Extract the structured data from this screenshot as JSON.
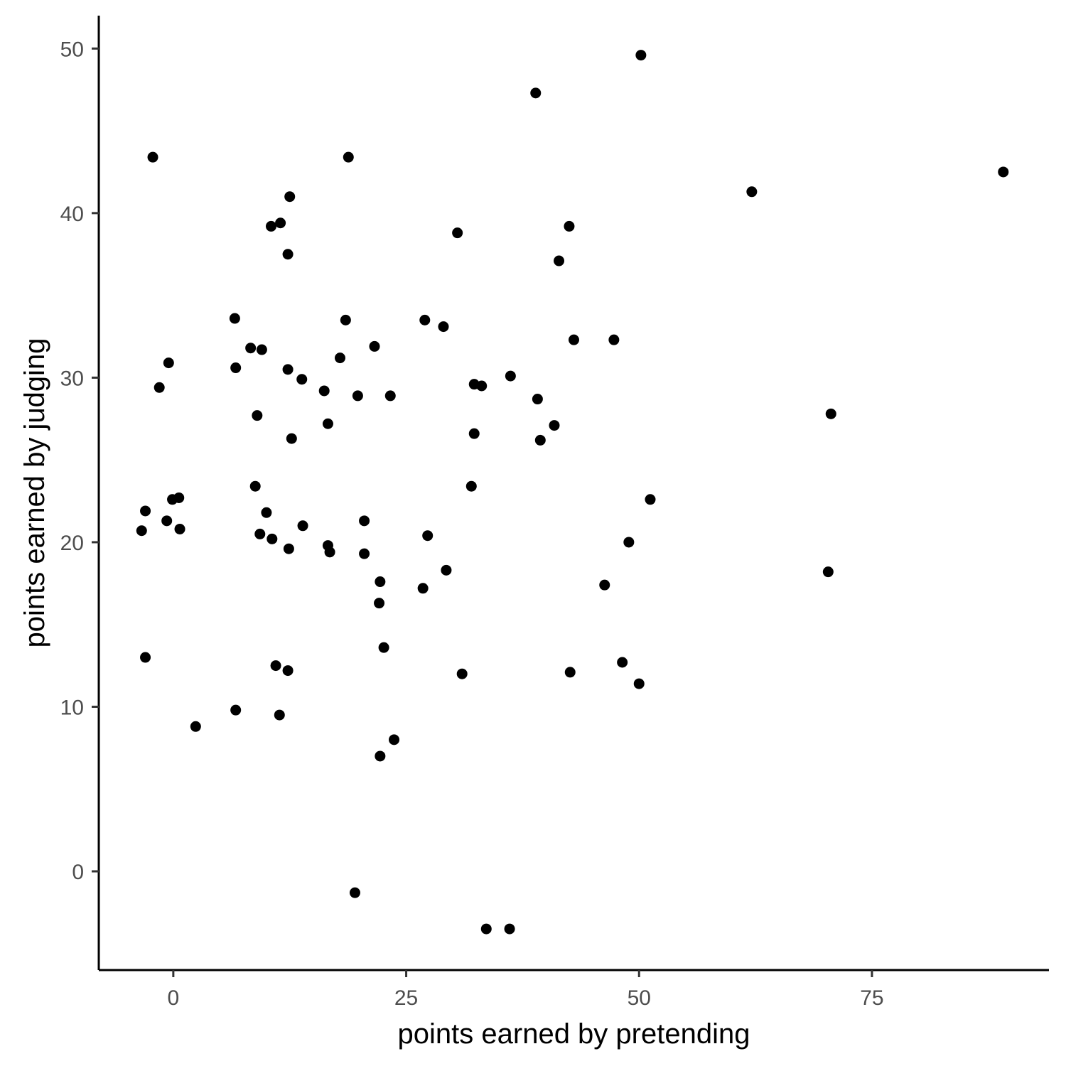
{
  "chart_data": {
    "type": "scatter",
    "xlabel": "points earned by pretending",
    "ylabel": "points earned by judging",
    "xlim": [
      -8,
      94
    ],
    "ylim": [
      -6,
      52
    ],
    "xticks": [
      0,
      25,
      50,
      75
    ],
    "yticks": [
      0,
      10,
      20,
      30,
      40,
      50
    ],
    "grid": false,
    "point_color": "#000000",
    "points": [
      [
        50.2,
        49.6
      ],
      [
        38.9,
        47.3
      ],
      [
        -2.2,
        43.4
      ],
      [
        18.8,
        43.4
      ],
      [
        89.1,
        42.5
      ],
      [
        62.1,
        41.3
      ],
      [
        12.5,
        41.0
      ],
      [
        11.5,
        39.4
      ],
      [
        10.5,
        39.2
      ],
      [
        42.5,
        39.2
      ],
      [
        30.5,
        38.8
      ],
      [
        12.3,
        37.5
      ],
      [
        41.4,
        37.1
      ],
      [
        6.6,
        33.6
      ],
      [
        18.5,
        33.5
      ],
      [
        27.0,
        33.5
      ],
      [
        29.0,
        33.1
      ],
      [
        43.0,
        32.3
      ],
      [
        47.3,
        32.3
      ],
      [
        8.3,
        31.8
      ],
      [
        21.6,
        31.9
      ],
      [
        9.5,
        31.7
      ],
      [
        17.9,
        31.2
      ],
      [
        -0.5,
        30.9
      ],
      [
        6.7,
        30.6
      ],
      [
        12.3,
        30.5
      ],
      [
        13.8,
        29.9
      ],
      [
        36.2,
        30.1
      ],
      [
        32.3,
        29.6
      ],
      [
        33.1,
        29.5
      ],
      [
        -1.5,
        29.4
      ],
      [
        16.2,
        29.2
      ],
      [
        19.8,
        28.9
      ],
      [
        23.3,
        28.9
      ],
      [
        39.1,
        28.7
      ],
      [
        9.0,
        27.7
      ],
      [
        16.6,
        27.2
      ],
      [
        70.6,
        27.8
      ],
      [
        40.9,
        27.1
      ],
      [
        32.3,
        26.6
      ],
      [
        12.7,
        26.3
      ],
      [
        39.4,
        26.2
      ],
      [
        8.8,
        23.4
      ],
      [
        32.0,
        23.4
      ],
      [
        -0.1,
        22.6
      ],
      [
        0.6,
        22.7
      ],
      [
        51.2,
        22.6
      ],
      [
        -3.0,
        21.9
      ],
      [
        10.0,
        21.8
      ],
      [
        -0.7,
        21.3
      ],
      [
        20.5,
        21.3
      ],
      [
        13.9,
        21.0
      ],
      [
        -3.4,
        20.7
      ],
      [
        0.7,
        20.8
      ],
      [
        9.3,
        20.5
      ],
      [
        27.3,
        20.4
      ],
      [
        10.6,
        20.2
      ],
      [
        48.9,
        20.0
      ],
      [
        16.6,
        19.8
      ],
      [
        16.8,
        19.4
      ],
      [
        12.4,
        19.6
      ],
      [
        20.5,
        19.3
      ],
      [
        29.3,
        18.3
      ],
      [
        70.3,
        18.2
      ],
      [
        22.2,
        17.6
      ],
      [
        46.3,
        17.4
      ],
      [
        26.8,
        17.2
      ],
      [
        22.1,
        16.3
      ],
      [
        22.6,
        13.6
      ],
      [
        -3.0,
        13.0
      ],
      [
        48.2,
        12.7
      ],
      [
        11.0,
        12.5
      ],
      [
        12.3,
        12.2
      ],
      [
        42.6,
        12.1
      ],
      [
        31.0,
        12.0
      ],
      [
        50.0,
        11.4
      ],
      [
        6.7,
        9.8
      ],
      [
        11.4,
        9.5
      ],
      [
        2.4,
        8.8
      ],
      [
        23.7,
        8.0
      ],
      [
        22.2,
        7.0
      ],
      [
        19.5,
        -1.3
      ],
      [
        33.6,
        -3.5
      ],
      [
        36.1,
        -3.5
      ]
    ]
  }
}
